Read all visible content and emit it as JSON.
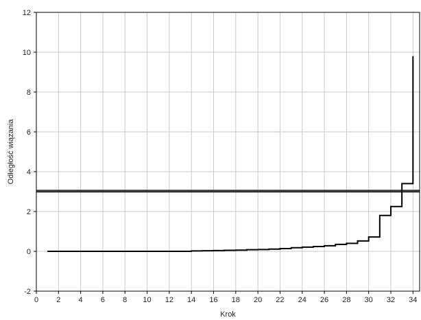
{
  "chart_data": {
    "type": "line",
    "title": "",
    "xlabel": "Krok",
    "ylabel": "Odległość wiązania",
    "xlim": [
      0,
      34.6
    ],
    "ylim": [
      -2,
      12
    ],
    "x_ticks": [
      0,
      2,
      4,
      6,
      8,
      10,
      12,
      14,
      16,
      18,
      20,
      22,
      24,
      26,
      28,
      30,
      32,
      34
    ],
    "y_ticks": [
      -2,
      0,
      2,
      4,
      6,
      8,
      10,
      12
    ],
    "grid": true,
    "step_style": "post",
    "series": [
      {
        "x": [
          1,
          2,
          3,
          4,
          5,
          6,
          7,
          8,
          9,
          10,
          11,
          12,
          13,
          14,
          15,
          16,
          17,
          18,
          19,
          20,
          21,
          22,
          23,
          24,
          25,
          26,
          27,
          28,
          29,
          30,
          31,
          32,
          33,
          34
        ],
        "values": [
          0,
          0,
          0,
          0,
          0,
          0,
          0,
          0,
          0,
          0,
          0,
          0,
          0,
          0.02,
          0.03,
          0.04,
          0.05,
          0.06,
          0.08,
          0.09,
          0.11,
          0.14,
          0.18,
          0.21,
          0.24,
          0.28,
          0.35,
          0.4,
          0.52,
          0.72,
          1.8,
          2.25,
          3.4,
          9.8
        ],
        "color": "#000000"
      }
    ],
    "reference_lines": [
      {
        "y": 3.02,
        "color": "#333333"
      }
    ]
  }
}
